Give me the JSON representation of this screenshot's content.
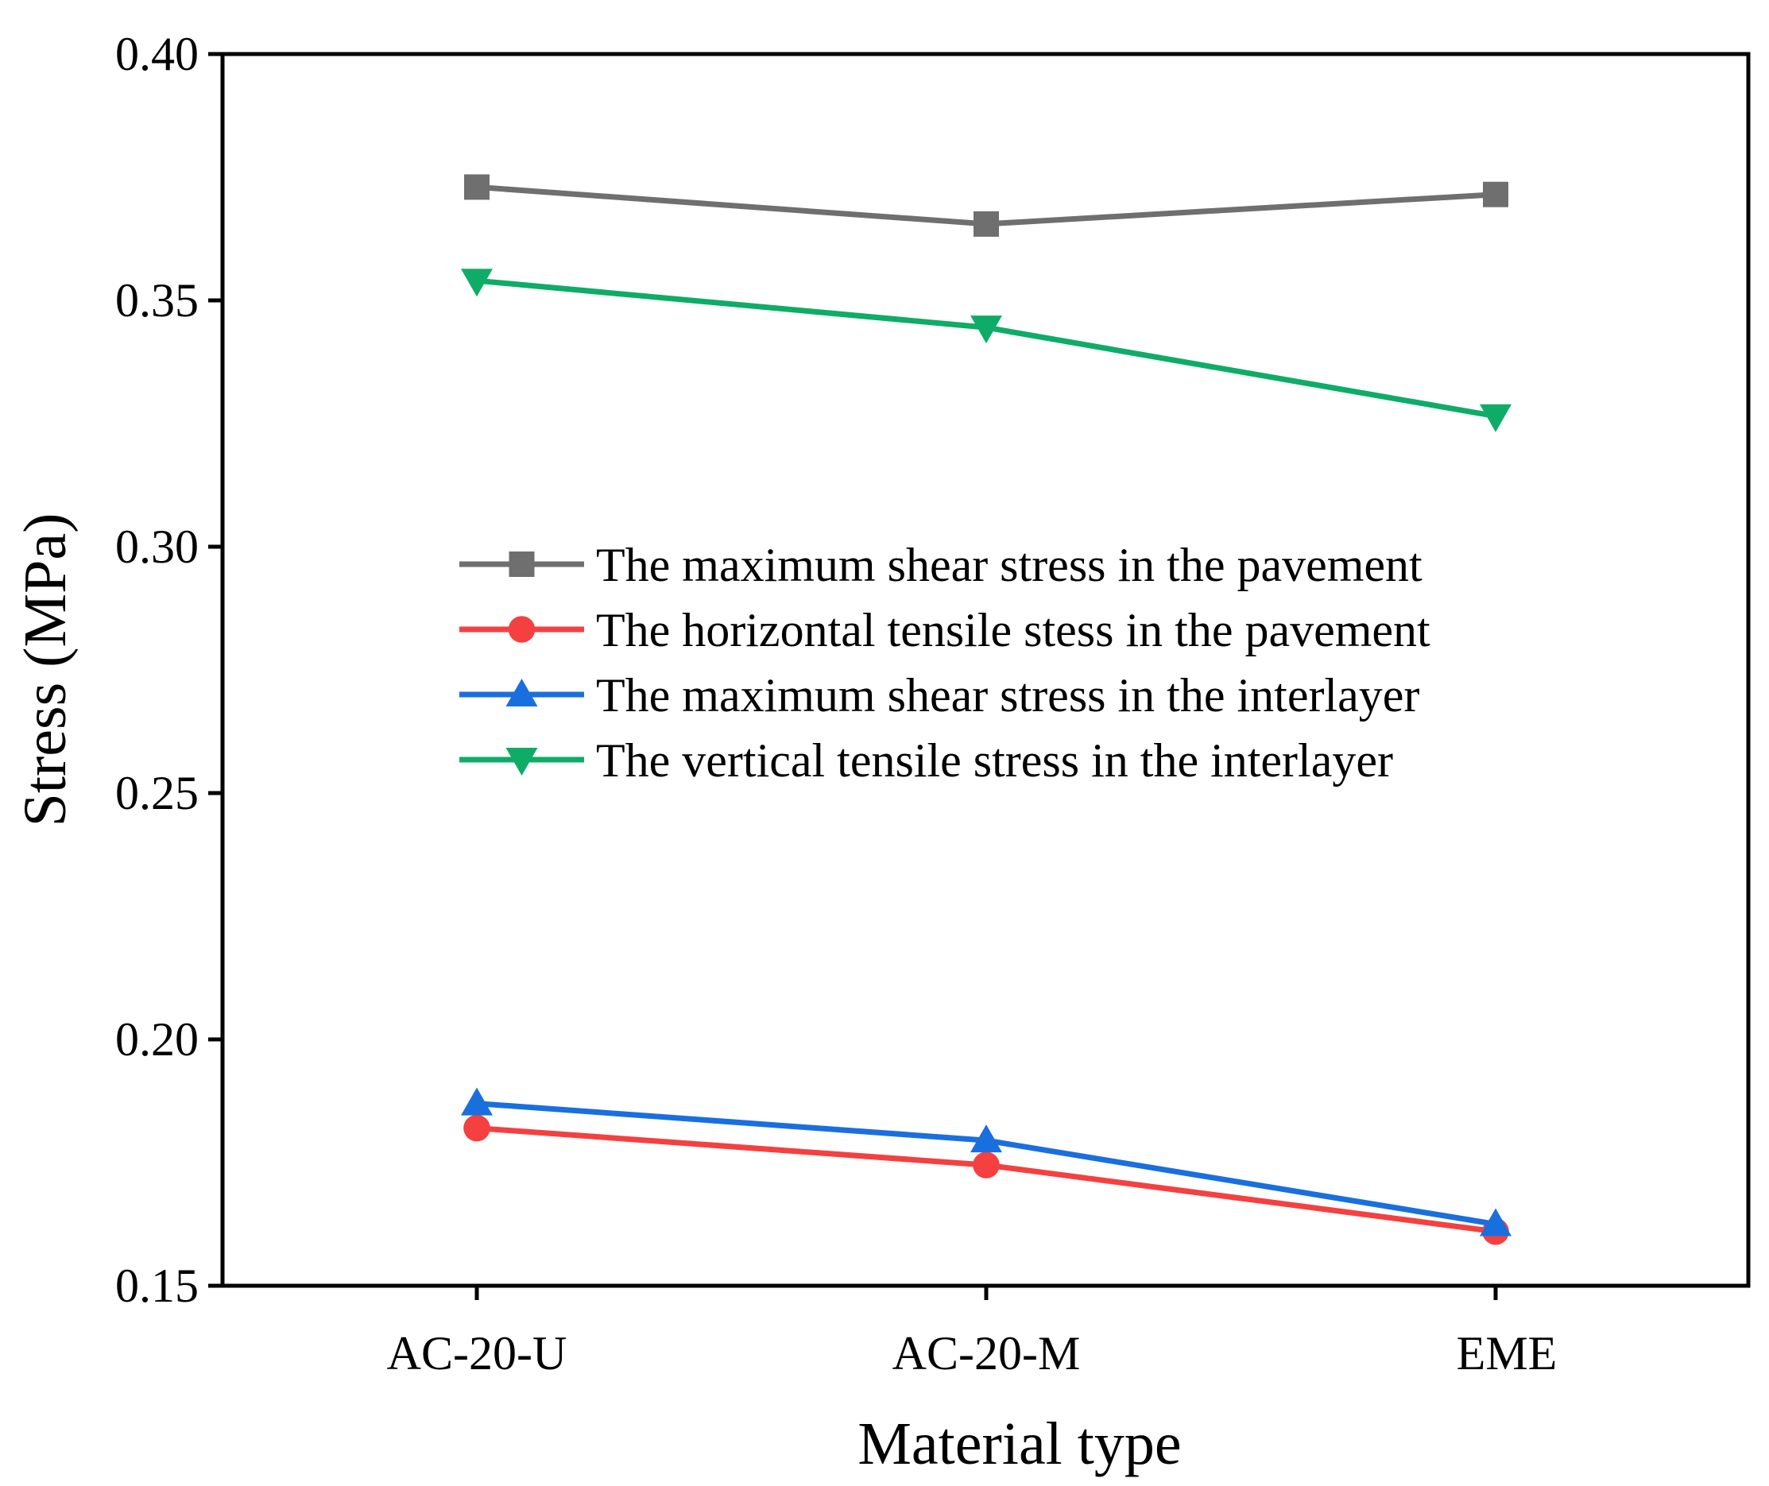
{
  "chart_data": {
    "type": "line",
    "title": "",
    "xlabel": "Material type",
    "ylabel": "Stress (MPa)",
    "categories": [
      "AC-20-U",
      "AC-20-M",
      "EME"
    ],
    "ylim": [
      0.15,
      0.4
    ],
    "yticks": [
      "0.15",
      "0.20",
      "0.25",
      "0.30",
      "0.35",
      "0.40"
    ],
    "grid": false,
    "legend_position": "center",
    "series": [
      {
        "name": "The maximum shear stress in the pavement",
        "values": [
          0.373,
          0.3655,
          0.3715
        ],
        "color": "#6f6f6f",
        "marker": "square"
      },
      {
        "name": "The horizontal tensile stess in the pavement",
        "values": [
          0.182,
          0.1745,
          0.161
        ],
        "color": "#f44040",
        "marker": "circle"
      },
      {
        "name": "The maximum shear stress in the interlayer",
        "values": [
          0.187,
          0.1795,
          0.1625
        ],
        "color": "#1a6fdf",
        "marker": "triangle-up"
      },
      {
        "name": "The vertical tensile stress in the interlayer",
        "values": [
          0.354,
          0.3445,
          0.3265
        ],
        "color": "#0fac67",
        "marker": "triangle-down"
      }
    ]
  }
}
